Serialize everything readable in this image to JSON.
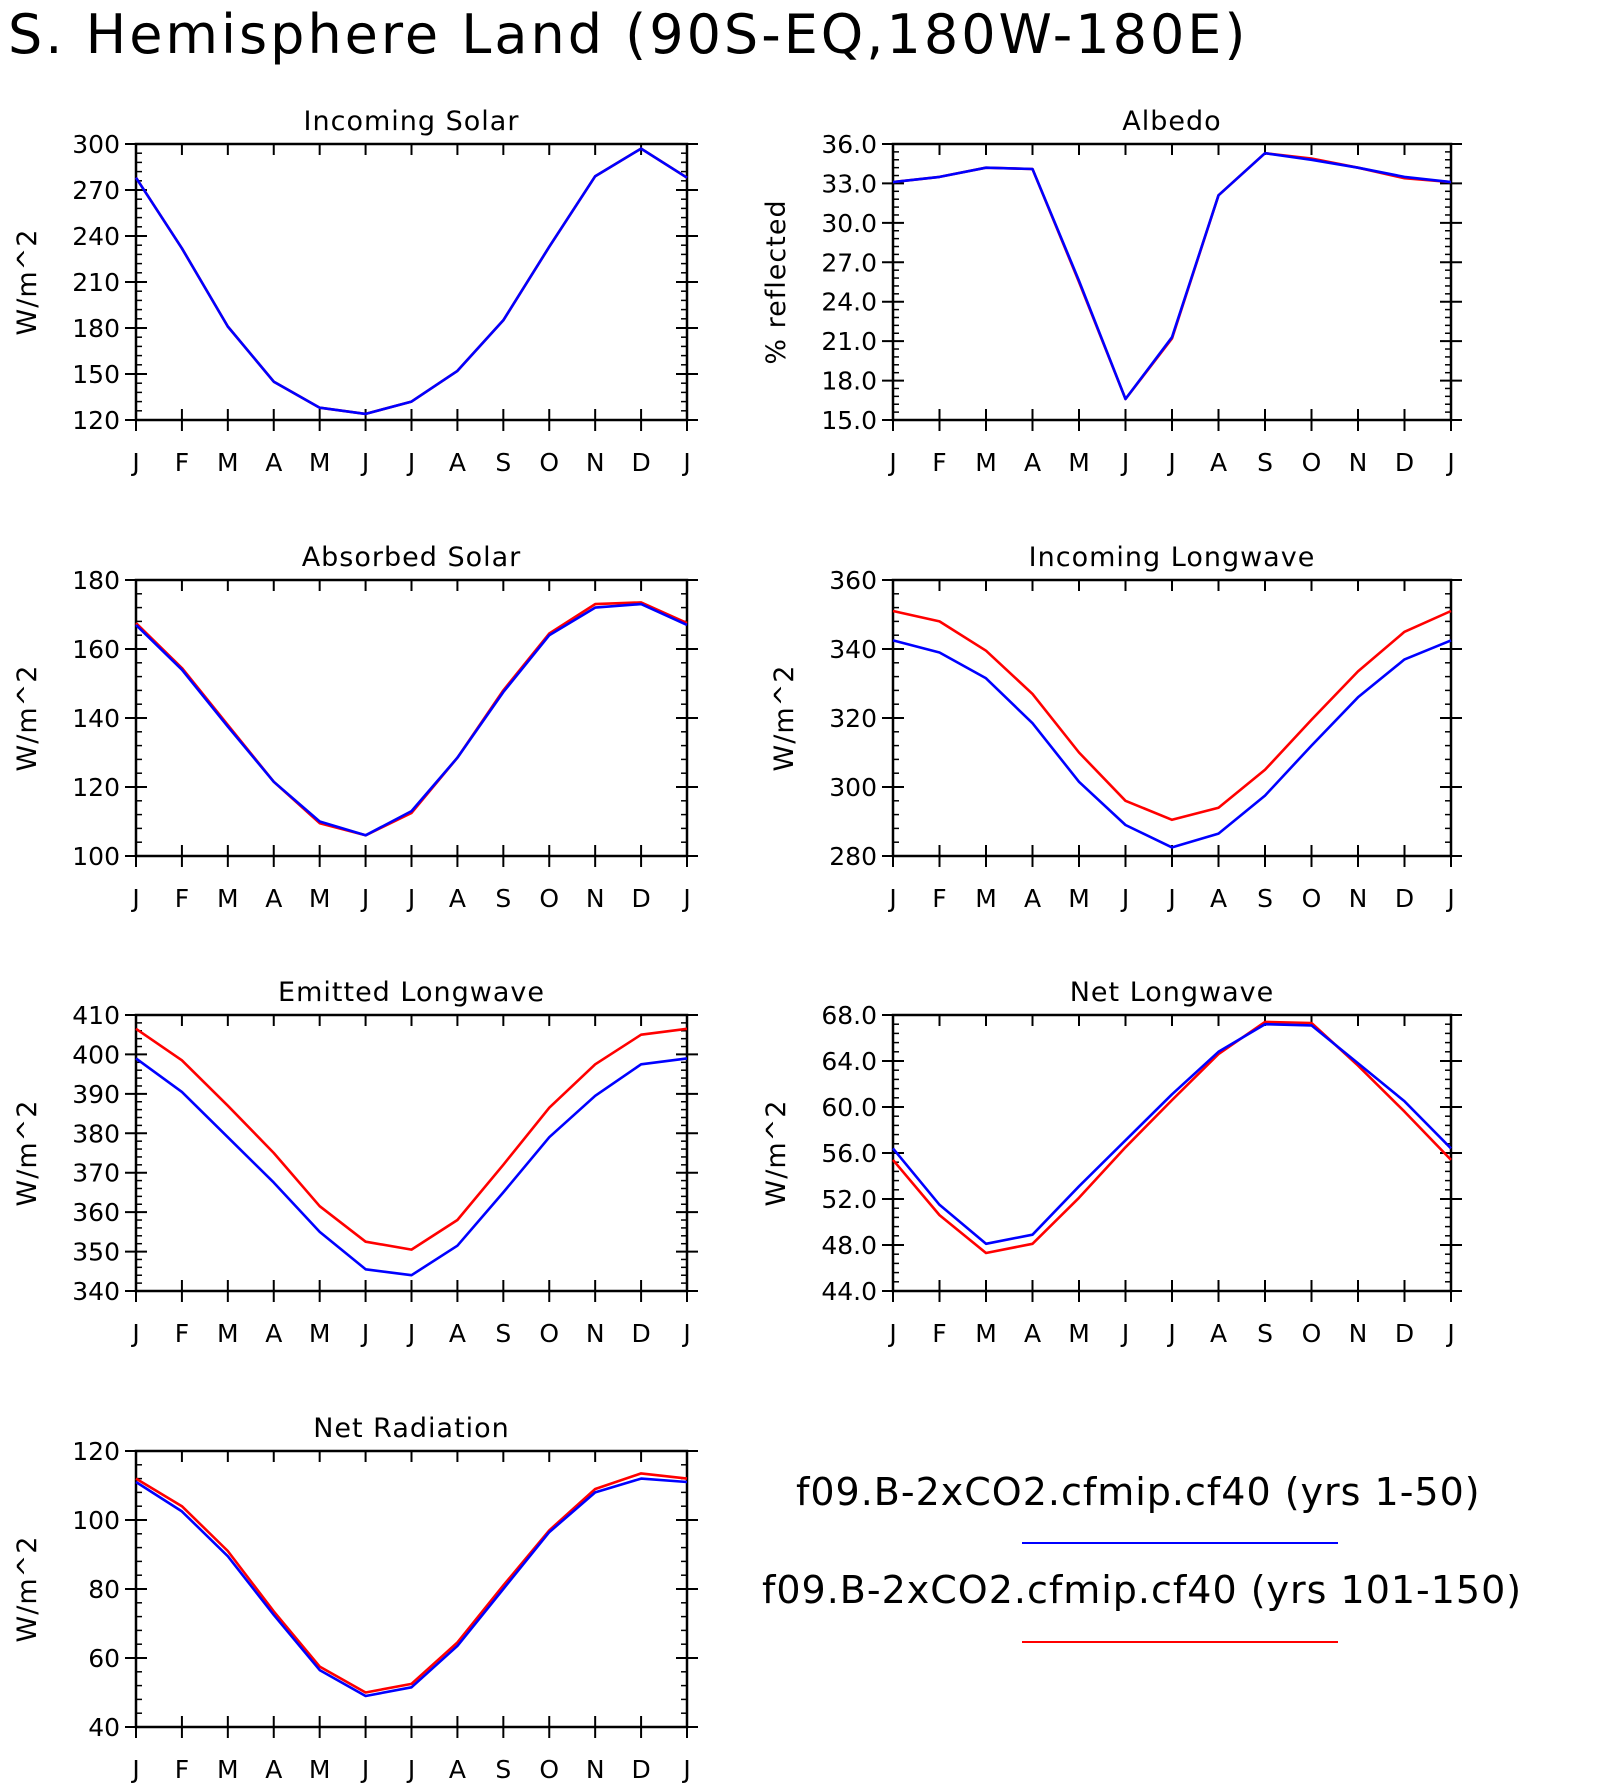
{
  "page_title": "S. Hemisphere Land (90S-EQ,180W-180E)",
  "colors": {
    "series_1": "#0000ff",
    "series_2": "#ff0000",
    "axis": "#000000"
  },
  "legend": [
    {
      "label": "f09.B-2xCO2.cfmip.cf40 (yrs 1-50)",
      "color": "#0000ff"
    },
    {
      "label": "f09.B-2xCO2.cfmip.cf40 (yrs 101-150)",
      "color": "#ff0000"
    }
  ],
  "chart_data": [
    {
      "type": "line",
      "title": "Incoming Solar",
      "ylabel": "W/m^2",
      "xlabel": "",
      "categories": [
        "J",
        "F",
        "M",
        "A",
        "M",
        "J",
        "J",
        "A",
        "S",
        "O",
        "N",
        "D",
        "J"
      ],
      "ylim": [
        120,
        300
      ],
      "yticks": [
        120,
        150,
        180,
        210,
        240,
        270,
        300
      ],
      "ytick_labels": [
        "120",
        "150",
        "180",
        "210",
        "240",
        "270",
        "300"
      ],
      "series": [
        {
          "color": "#ff0000",
          "values": [
            278,
            232,
            181,
            145,
            128,
            124,
            132,
            152,
            185,
            233,
            279,
            297,
            278
          ]
        },
        {
          "color": "#0000ff",
          "values": [
            278,
            232,
            181,
            145,
            128,
            124,
            132,
            152,
            185,
            233,
            279,
            297,
            278
          ]
        }
      ]
    },
    {
      "type": "line",
      "title": "Albedo",
      "ylabel": "% reflected",
      "xlabel": "",
      "categories": [
        "J",
        "F",
        "M",
        "A",
        "M",
        "J",
        "J",
        "A",
        "S",
        "O",
        "N",
        "D",
        "J"
      ],
      "ylim": [
        15,
        36
      ],
      "yticks": [
        15,
        18,
        21,
        24,
        27,
        30,
        33,
        36
      ],
      "ytick_labels": [
        "15.0",
        "18.0",
        "21.0",
        "24.0",
        "27.0",
        "30.0",
        "33.0",
        "36.0"
      ],
      "series": [
        {
          "color": "#ff0000",
          "values": [
            33.1,
            33.5,
            34.2,
            34.1,
            25.5,
            16.6,
            21.2,
            32.1,
            35.3,
            34.9,
            34.2,
            33.4,
            33.1
          ]
        },
        {
          "color": "#0000ff",
          "values": [
            33.1,
            33.5,
            34.2,
            34.1,
            25.6,
            16.6,
            21.3,
            32.1,
            35.3,
            34.8,
            34.2,
            33.5,
            33.1
          ]
        }
      ]
    },
    {
      "type": "line",
      "title": "Absorbed Solar",
      "ylabel": "W/m^2",
      "xlabel": "",
      "categories": [
        "J",
        "F",
        "M",
        "A",
        "M",
        "J",
        "J",
        "A",
        "S",
        "O",
        "N",
        "D",
        "J"
      ],
      "ylim": [
        100,
        180
      ],
      "yticks": [
        100,
        120,
        140,
        160,
        180
      ],
      "ytick_labels": [
        "100",
        "120",
        "140",
        "160",
        "180"
      ],
      "series": [
        {
          "color": "#ff0000",
          "values": [
            167.5,
            154.5,
            138,
            121.5,
            109.5,
            106,
            112.5,
            128.5,
            148,
            164.5,
            173,
            173.5,
            167.5
          ]
        },
        {
          "color": "#0000ff",
          "values": [
            167,
            154,
            137.5,
            121.5,
            110,
            106,
            113,
            128.5,
            147.5,
            164,
            172,
            173,
            167
          ]
        }
      ]
    },
    {
      "type": "line",
      "title": "Incoming Longwave",
      "ylabel": "W/m^2",
      "xlabel": "",
      "categories": [
        "J",
        "F",
        "M",
        "A",
        "M",
        "J",
        "J",
        "A",
        "S",
        "O",
        "N",
        "D",
        "J"
      ],
      "ylim": [
        280,
        360
      ],
      "yticks": [
        280,
        300,
        320,
        340,
        360
      ],
      "ytick_labels": [
        "280",
        "300",
        "320",
        "340",
        "360"
      ],
      "series": [
        {
          "color": "#ff0000",
          "values": [
            351,
            348,
            339.5,
            327,
            310,
            296,
            290.5,
            294,
            305,
            319.5,
            333.5,
            345,
            351
          ]
        },
        {
          "color": "#0000ff",
          "values": [
            342.5,
            339,
            331.5,
            318.5,
            301.5,
            289,
            282.5,
            286.5,
            297.5,
            312,
            326,
            337,
            342.5
          ]
        }
      ]
    },
    {
      "type": "line",
      "title": "Emitted Longwave",
      "ylabel": "W/m^2",
      "xlabel": "",
      "categories": [
        "J",
        "F",
        "M",
        "A",
        "M",
        "J",
        "J",
        "A",
        "S",
        "O",
        "N",
        "D",
        "J"
      ],
      "ylim": [
        340,
        410
      ],
      "yticks": [
        340,
        350,
        360,
        370,
        380,
        390,
        400,
        410
      ],
      "ytick_labels": [
        "340",
        "350",
        "360",
        "370",
        "380",
        "390",
        "400",
        "410"
      ],
      "series": [
        {
          "color": "#ff0000",
          "values": [
            406.5,
            398.5,
            387,
            375,
            361.5,
            352.5,
            350.5,
            358,
            372,
            386.5,
            397.5,
            405,
            406.5
          ]
        },
        {
          "color": "#0000ff",
          "values": [
            399,
            390.5,
            379,
            367.5,
            355,
            345.5,
            344,
            351.5,
            365,
            379,
            389.5,
            397.5,
            399
          ]
        }
      ]
    },
    {
      "type": "line",
      "title": "Net Longwave",
      "ylabel": "W/m^2",
      "xlabel": "",
      "categories": [
        "J",
        "F",
        "M",
        "A",
        "M",
        "J",
        "J",
        "A",
        "S",
        "O",
        "N",
        "D",
        "J"
      ],
      "ylim": [
        44,
        68
      ],
      "yticks": [
        44,
        48,
        52,
        56,
        60,
        64,
        68
      ],
      "ytick_labels": [
        "44.0",
        "48.0",
        "52.0",
        "56.0",
        "60.0",
        "64.0",
        "68.0"
      ],
      "series": [
        {
          "color": "#ff0000",
          "values": [
            55.4,
            50.6,
            47.3,
            48.1,
            52.1,
            56.5,
            60.6,
            64.6,
            67.4,
            67.3,
            63.6,
            59.6,
            55.4
          ]
        },
        {
          "color": "#0000ff",
          "values": [
            56.4,
            51.5,
            48.1,
            48.9,
            53.1,
            57.1,
            61.1,
            64.8,
            67.2,
            67.1,
            63.8,
            60.5,
            56.4
          ]
        }
      ]
    },
    {
      "type": "line",
      "title": "Net Radiation",
      "ylabel": "W/m^2",
      "xlabel": "",
      "categories": [
        "J",
        "F",
        "M",
        "A",
        "M",
        "J",
        "J",
        "A",
        "S",
        "O",
        "N",
        "D",
        "J"
      ],
      "ylim": [
        40,
        120
      ],
      "yticks": [
        40,
        60,
        80,
        100,
        120
      ],
      "ytick_labels": [
        "40",
        "60",
        "80",
        "100",
        "120"
      ],
      "series": [
        {
          "color": "#ff0000",
          "values": [
            112,
            104,
            91,
            73.5,
            57.5,
            50,
            52.5,
            64.5,
            81,
            97,
            109,
            113.5,
            112
          ]
        },
        {
          "color": "#0000ff",
          "values": [
            111,
            102.5,
            89.5,
            72.5,
            56.5,
            49,
            51.5,
            63.5,
            80,
            96.5,
            108,
            112,
            111
          ]
        }
      ]
    }
  ]
}
